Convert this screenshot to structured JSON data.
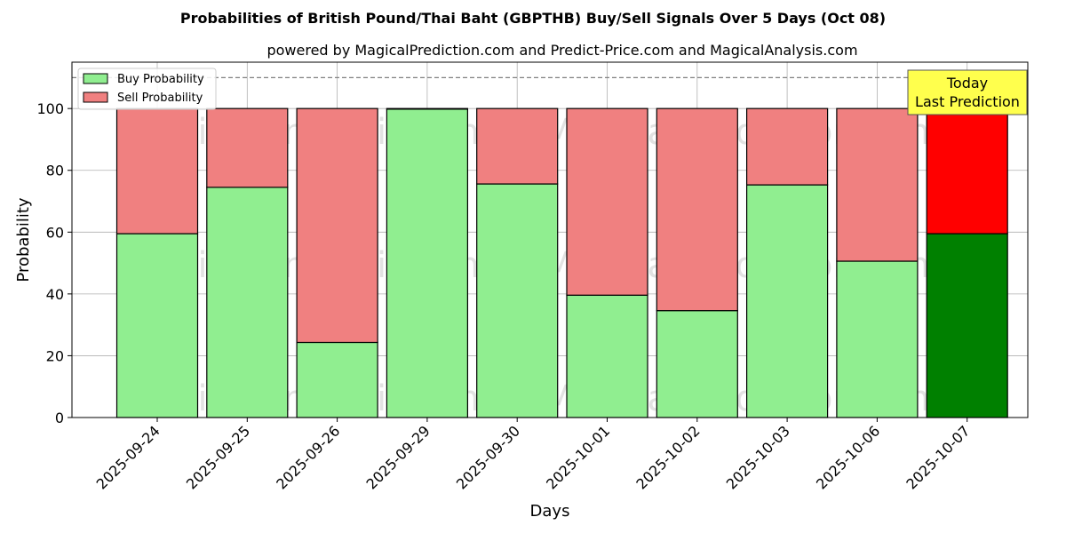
{
  "chart_data": {
    "type": "bar",
    "stacked": true,
    "title": "Probabilities of British Pound/Thai Baht (GBPTHB) Buy/Sell Signals Over 5 Days (Oct 08)",
    "subtitle": "powered by MagicalPrediction.com and Predict-Price.com and MagicalAnalysis.com",
    "xlabel": "Days",
    "ylabel": "Probability",
    "ylim": [
      0,
      115
    ],
    "yticks": [
      0,
      20,
      40,
      60,
      80,
      100
    ],
    "grid": true,
    "legend_placement": "top-left",
    "reference_line": 110,
    "categories": [
      "2025-09-24",
      "2025-09-25",
      "2025-09-26",
      "2025-09-29",
      "2025-09-30",
      "2025-10-01",
      "2025-10-02",
      "2025-10-03",
      "2025-10-06",
      "2025-10-07"
    ],
    "series": [
      {
        "name": "Buy Probability",
        "color": "#90ee90",
        "today_color": "#008000",
        "values": [
          59.5,
          74.5,
          24.3,
          99.8,
          75.6,
          39.6,
          34.6,
          75.3,
          50.6,
          59.5
        ]
      },
      {
        "name": "Sell Probability",
        "color": "#f08080",
        "today_color": "#ff0000",
        "values": [
          40.5,
          25.5,
          75.7,
          0.2,
          24.4,
          60.4,
          65.4,
          24.7,
          49.4,
          40.5
        ]
      }
    ],
    "annotation": {
      "lines": [
        "Today",
        "Last Prediction"
      ],
      "background": "#ffff4d"
    },
    "watermarks": [
      "MagicalAnalysis.com",
      "MagicalPrediction.com"
    ]
  }
}
